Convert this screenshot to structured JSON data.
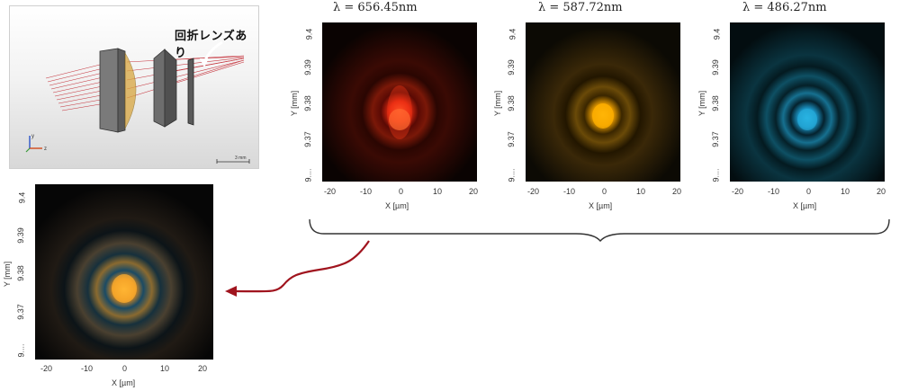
{
  "layout_panel": {
    "label": "回折レンズあり",
    "axis_y": "y",
    "axis_z": "z",
    "scale_label": "3 mm"
  },
  "plots": [
    {
      "id": "red",
      "title_prefix": "λ = ",
      "title_value": "656.45",
      "title_unit": "nm",
      "xlabel": "X [µm]",
      "ylabel": "Y [mm]",
      "xticks": [
        "-20",
        "-10",
        "0",
        "10",
        "20"
      ],
      "yticks": [
        "9.4",
        "9.39",
        "9.38",
        "9.37",
        "9...."
      ],
      "color": "#ff3b1a"
    },
    {
      "id": "yellow",
      "title_prefix": "λ = ",
      "title_value": "587.72",
      "title_unit": "nm",
      "xlabel": "X [µm]",
      "ylabel": "Y [mm]",
      "xticks": [
        "-20",
        "-10",
        "0",
        "10",
        "20"
      ],
      "yticks": [
        "9.4",
        "9.39",
        "9.38",
        "9.37",
        "9...."
      ],
      "color": "#f2a200"
    },
    {
      "id": "blue",
      "title_prefix": "λ = ",
      "title_value": "486.27",
      "title_unit": "nm",
      "xlabel": "X [µm]",
      "ylabel": "Y [mm]",
      "xticks": [
        "-20",
        "-10",
        "0",
        "10",
        "20"
      ],
      "yticks": [
        "9.4",
        "9.39",
        "9.38",
        "9.37",
        "9...."
      ],
      "color": "#1aa8d6"
    },
    {
      "id": "combined",
      "xlabel": "X [µm]",
      "ylabel": "Y [mm]",
      "xticks": [
        "-20",
        "-10",
        "0",
        "10",
        "20"
      ],
      "yticks": [
        "9.4",
        "9.39",
        "9.38",
        "9.37",
        "9...."
      ],
      "color": "#f5a623"
    }
  ],
  "colors": {
    "arrow": "#a0141e",
    "brace": "#333333"
  }
}
